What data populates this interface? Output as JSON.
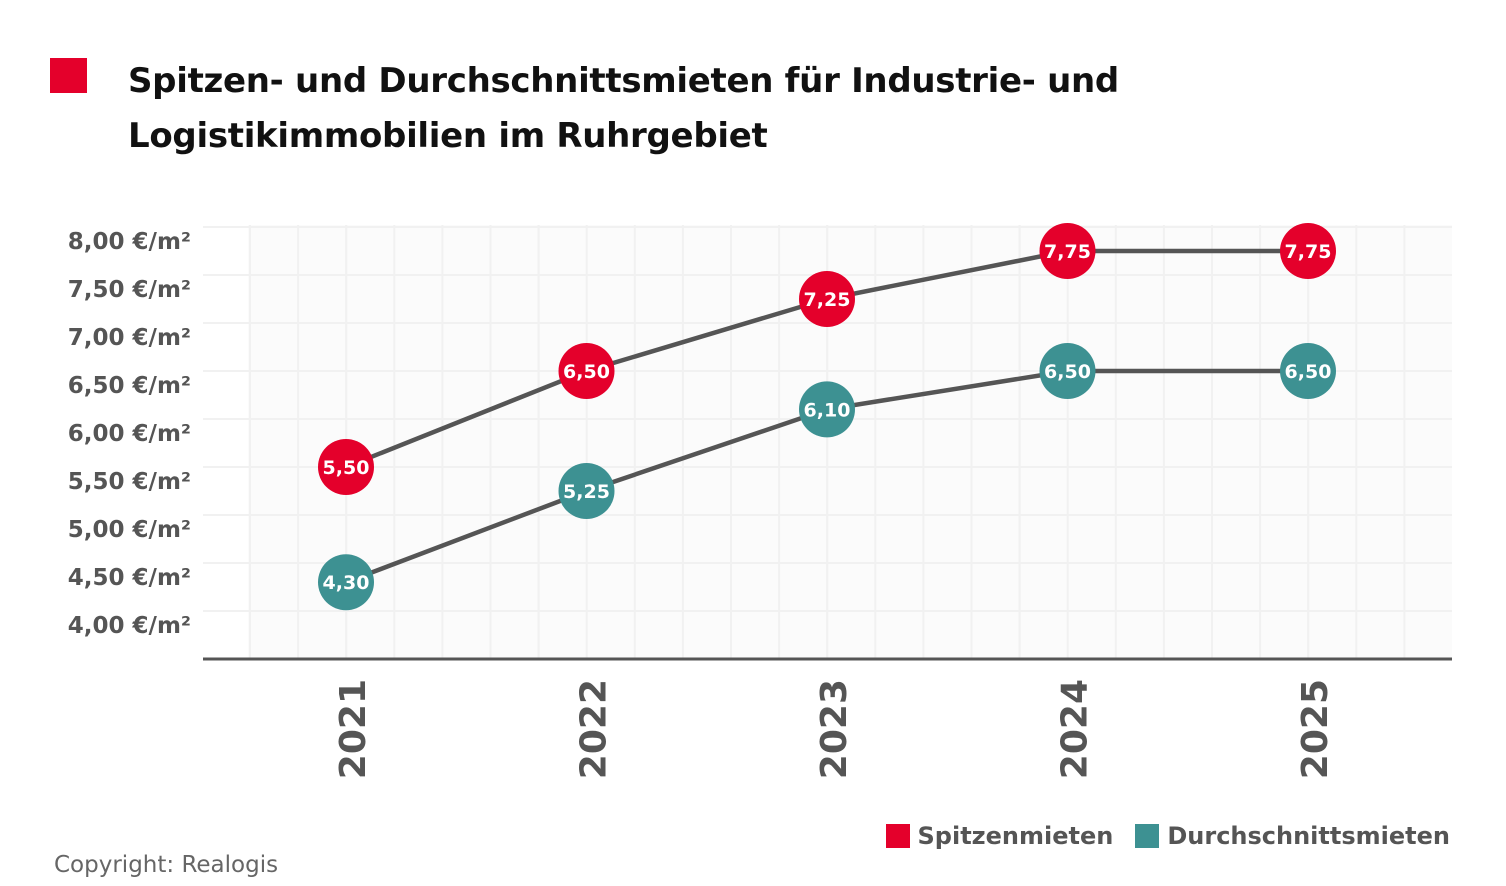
{
  "title": "Spitzen- und Durchschnittsmieten für Industrie- und Logistikimmobilien im Ruhrgebiet",
  "copyright": "Copyright: Realogis",
  "colors": {
    "accent": "#e4002b",
    "teal": "#3d9192",
    "line": "#555555",
    "axis": "#555555"
  },
  "chart_data": {
    "type": "line",
    "title": "Spitzen- und Durchschnittsmieten für Industrie- und Logistikimmobilien im Ruhrgebiet",
    "categories": [
      "2021",
      "2022",
      "2023",
      "2024",
      "2025"
    ],
    "series": [
      {
        "name": "Spitzenmieten",
        "color": "#e4002b",
        "values": [
          5.5,
          6.5,
          7.25,
          7.75,
          7.75
        ],
        "labels": [
          "5,50",
          "6,50",
          "7,25",
          "7,75",
          "7,75"
        ]
      },
      {
        "name": "Durchschnittsmieten",
        "color": "#3d9192",
        "values": [
          4.3,
          5.25,
          6.1,
          6.5,
          6.5
        ],
        "labels": [
          "4,30",
          "5,25",
          "6,10",
          "6,50",
          "6,50"
        ]
      }
    ],
    "yticks": [
      8.0,
      7.5,
      7.0,
      6.5,
      6.0,
      5.5,
      5.0,
      4.5,
      4.0
    ],
    "ytick_labels": [
      "8,00 €/m²",
      "7,50 €/m²",
      "7,00 €/m²",
      "6,50 €/m²",
      "6,00 €/m²",
      "5,50 €/m²",
      "5,00 €/m²",
      "4,50 €/m²",
      "4,00 €/m²"
    ],
    "ylim": [
      3.5,
      8.0
    ],
    "grid": true,
    "legend_position": "bottom-right",
    "xlabel": "",
    "ylabel": ""
  }
}
